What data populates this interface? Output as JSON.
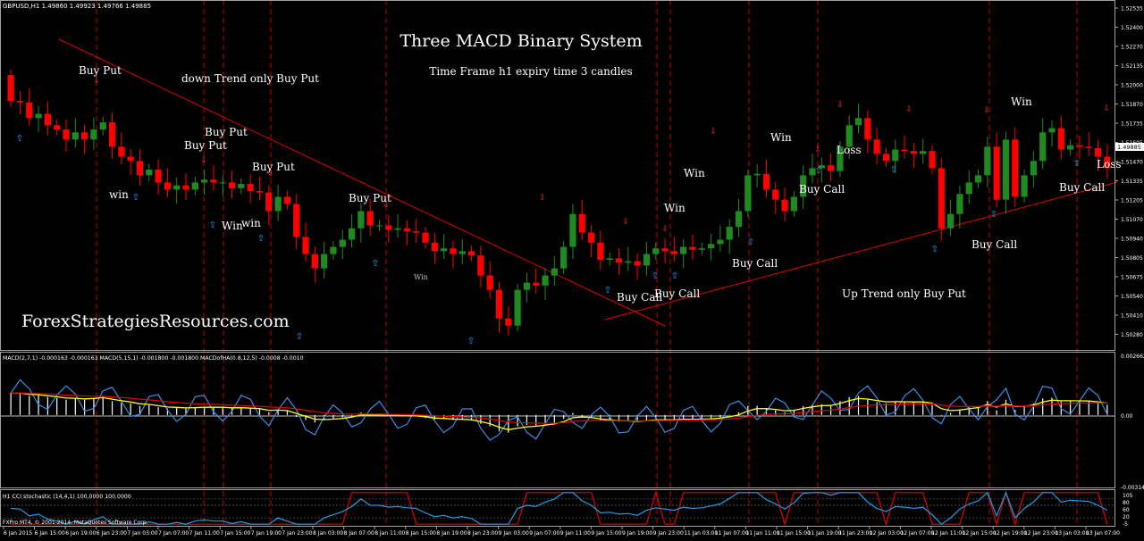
{
  "window": {
    "symbol_header": "GBPUSD,H1 1.49860 1.49923 1.49766 1.49885",
    "copyright": "FXPro MT4, © 2001-2014, MetaQuotes Software Corp."
  },
  "texts": {
    "title": "Three MACD Binary System",
    "subtitle": "Time Frame h1 expiry time 3 candles",
    "watermark": "ForexStrategiesResources.com",
    "down_trend": "down Trend only Buy Put",
    "up_trend": "Up Trend only Buy Put"
  },
  "annotations": [
    {
      "text": "Buy Put",
      "x": "6 Jan 16:00",
      "y": 1.5185
    },
    {
      "text": "Buy Put",
      "x": "7 Jan 02:00",
      "y": 1.5157
    },
    {
      "text": "Buy Put",
      "x": "6 Jan 23:00",
      "y": 1.5142
    },
    {
      "text": "Buy Put",
      "x": "7 Jan 06:00",
      "y": 1.5129
    },
    {
      "text": "Buy Put",
      "x": "8 Jan 07:00",
      "y": 1.5098
    },
    {
      "text": "win",
      "x": "6 Jan 19:00",
      "y": 1.5066
    },
    {
      "text": "Win",
      "x": "7 Jan 01:00",
      "y": 1.5043
    },
    {
      "text": "win",
      "x": "7 Jan 02:00",
      "y": 1.5044
    },
    {
      "text": "Win",
      "x": "8 Jan 11:00",
      "y": 1.4985
    },
    {
      "text": "Buy Call",
      "x": "9 Jan 07:00",
      "y": 1.4977
    },
    {
      "text": "Buy Call",
      "x": "9 Jan 15:00",
      "y": 1.498
    },
    {
      "text": "Win",
      "x": "9 Jan 19:00",
      "y": 1.5026
    },
    {
      "text": "Win",
      "x": "9 Jan 23:00",
      "y": 1.5063
    },
    {
      "text": "Buy Call",
      "x": "11 Jan 07:00",
      "y": 1.4999
    },
    {
      "text": "Win",
      "x": "11 Jan 23:00",
      "y": 1.5085
    },
    {
      "text": "Loss",
      "x": "12 Jan 03:00",
      "y": 1.5076
    },
    {
      "text": "Buy Call",
      "x": "11 Jan 23:00",
      "y": 1.5055
    },
    {
      "text": "Up Trend only Buy Put",
      "x": "12 Jan 07:00",
      "y": 1.4972
    },
    {
      "text": "Buy Call",
      "x": "12 Jan 19:00",
      "y": 1.5018
    },
    {
      "text": "Win",
      "x": "13 Jan 03:00",
      "y": 1.5124
    },
    {
      "text": "Buy Call",
      "x": "13 Jan 07:00",
      "y": 1.5055
    },
    {
      "text": "Loss",
      "x": "13 Jan 19:00",
      "y": 1.508
    }
  ],
  "chart_data": [
    {
      "type": "candlestick",
      "title": "GBPUSD,H1",
      "ohlc": [
        1.4986,
        1.49923,
        1.49766,
        1.49885
      ],
      "price_axis_ticks": [
        "1.52535",
        "1.52400",
        "1.52270",
        "1.52135",
        "1.52000",
        "1.51870",
        "1.51735",
        "1.51605",
        "1.51470",
        "1.51335",
        "1.51205",
        "1.51070",
        "1.50940",
        "1.50805",
        "1.50675",
        "1.50540",
        "1.50410",
        "1.50280"
      ],
      "current_price": "1.49885",
      "ylim": [
        1.5023,
        1.5265
      ],
      "time_axis_labels": [
        "6 Jan 2015",
        "6 Jan 15:00",
        "6 Jan 19:00",
        "6 Jan 23:00",
        "7 Jan 03:00",
        "7 Jan 07:00",
        "7 Jan 11:00",
        "7 Jan 15:00",
        "7 Jan 19:00",
        "7 Jan 23:00",
        "8 Jan 03:00",
        "8 Jan 07:00",
        "8 Jan 11:00",
        "8 Jan 15:00",
        "8 Jan 19:00",
        "8 Jan 23:00",
        "9 Jan 03:00",
        "9 Jan 07:00",
        "9 Jan 11:00",
        "9 Jan 15:00",
        "9 Jan 19:00",
        "9 Jan 23:00",
        "11 Jan 03:00",
        "11 Jan 07:00",
        "11 Jan 11:00",
        "11 Jan 15:00",
        "11 Jan 19:00",
        "11 Jan 23:00",
        "12 Jan 03:00",
        "12 Jan 07:00",
        "12 Jan 11:00",
        "12 Jan 15:00",
        "12 Jan 19:00",
        "12 Jan 23:00",
        "13 Jan 03:00",
        "13 Jan 07:00"
      ],
      "closes": [
        1.5197,
        1.5196,
        1.5185,
        1.5188,
        1.518,
        1.5177,
        1.517,
        1.5175,
        1.517,
        1.5177,
        1.5182,
        1.5165,
        1.5158,
        1.5155,
        1.5145,
        1.5149,
        1.514,
        1.5135,
        1.5138,
        1.5135,
        1.514,
        1.5142,
        1.514,
        1.514,
        1.5136,
        1.5139,
        1.5134,
        1.5133,
        1.512,
        1.513,
        1.5125,
        1.5102,
        1.509,
        1.508,
        1.509,
        1.5095,
        1.51,
        1.5108,
        1.512,
        1.511,
        1.511,
        1.5107,
        1.5108,
        1.5106,
        1.5105,
        1.5098,
        1.5092,
        1.5094,
        1.509,
        1.5092,
        1.5089,
        1.5075,
        1.5065,
        1.5045,
        1.504,
        1.5065,
        1.507,
        1.5068,
        1.5075,
        1.508,
        1.5095,
        1.5118,
        1.5105,
        1.5098,
        1.5086,
        1.5087,
        1.5084,
        1.5085,
        1.5082,
        1.509,
        1.5094,
        1.5092,
        1.509,
        1.5095,
        1.5093,
        1.5094,
        1.5097,
        1.51,
        1.5109,
        1.512,
        1.5145,
        1.5146,
        1.5135,
        1.5128,
        1.512,
        1.513,
        1.5145,
        1.515,
        1.5152,
        1.5148,
        1.5165,
        1.518,
        1.5185,
        1.517,
        1.516,
        1.5155,
        1.5163,
        1.5162,
        1.516,
        1.5162,
        1.515,
        1.5108,
        1.5118,
        1.5132,
        1.514,
        1.5145,
        1.5165,
        1.5128,
        1.517,
        1.513,
        1.5145,
        1.5155,
        1.5175,
        1.5178,
        1.5163,
        1.5166,
        1.5165,
        1.5164,
        1.5158,
        1.515
      ]
    },
    {
      "type": "line",
      "title": "MACD(2,7,1) -0.000163 -0.000163  MACD(5,15,1) -0.001800 -0.001800  MACDofHA(0.8,12,5) -0.0008 -0.0010",
      "y_axis_labels": [
        "0.002662",
        "0.00",
        "-0.003143"
      ],
      "ylim": [
        -0.003143,
        0.002662
      ],
      "series": [
        {
          "name": "MACD(2,7,1)",
          "color": "#3a8ee6"
        },
        {
          "name": "MACD(5,15,1)",
          "color": "#ffffff"
        },
        {
          "name": "MACDofHA(0.8,12,5)",
          "color": "#ffff00"
        },
        {
          "name": "",
          "color": "#e00000"
        }
      ]
    },
    {
      "type": "line",
      "title": "H1 CCI stochastic (14,4,1) 100.0000 100.0000",
      "y_axis_labels": [
        "105",
        "80",
        "60",
        "20",
        "-5"
      ],
      "ylim": [
        -5,
        105
      ],
      "series": [
        {
          "name": "CCI stochastic",
          "color": "#e00000"
        },
        {
          "name": "",
          "color": "#1e9ee6"
        }
      ]
    }
  ]
}
